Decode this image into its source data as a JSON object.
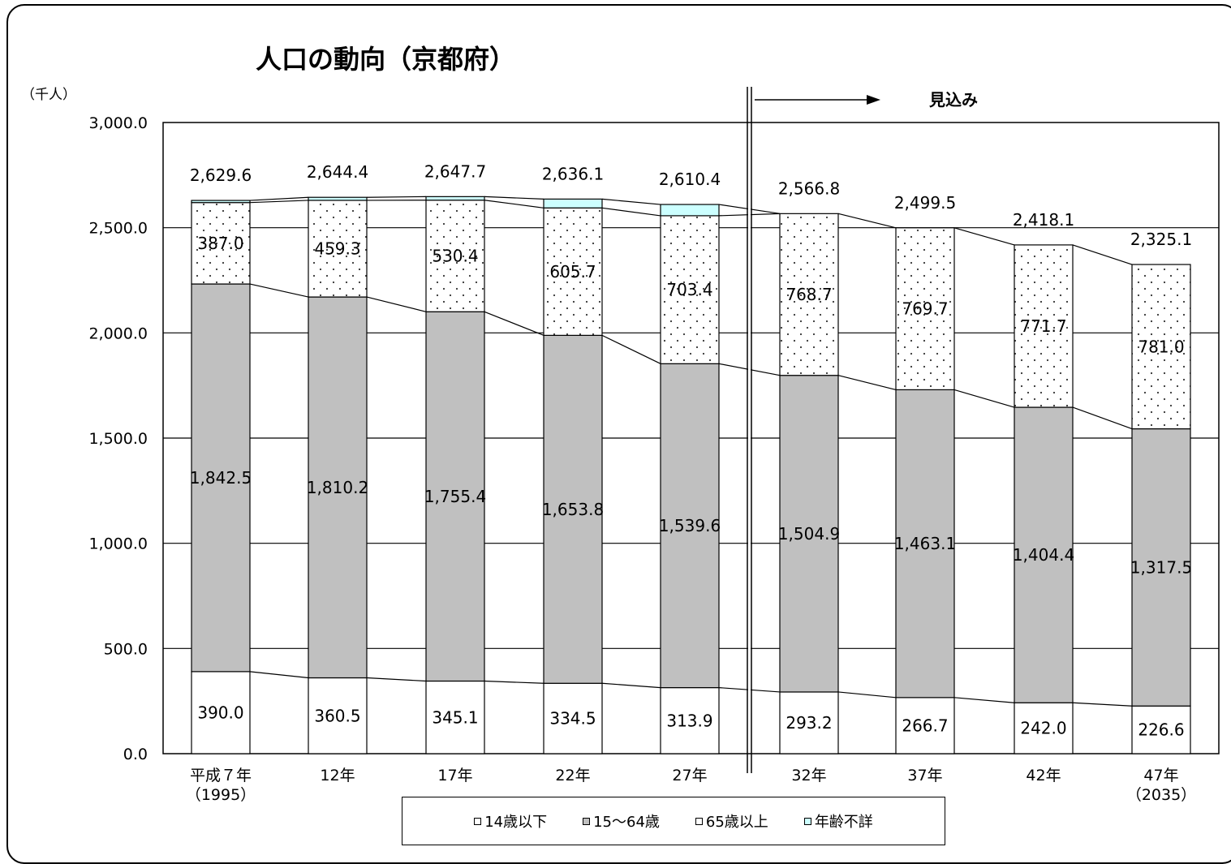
{
  "chart_data": {
    "type": "bar",
    "stacked": true,
    "title": "人口の動向（京都府）",
    "unit_label": "（千人）",
    "annotation": "見込み",
    "categories": [
      "平成７年\n（1995）",
      "12年",
      "17年",
      "22年",
      "27年",
      "32年",
      "37年",
      "42年",
      "47年\n（2035）"
    ],
    "series": [
      {
        "name": "14歳以下",
        "color": "#ffffff",
        "pattern": "none",
        "values": [
          390.0,
          360.5,
          345.1,
          334.5,
          313.9,
          293.2,
          266.7,
          242.0,
          226.6
        ],
        "labels": [
          "390.0",
          "360.5",
          "345.1",
          "334.5",
          "313.9",
          "293.2",
          "266.7",
          "242.0",
          "226.6"
        ]
      },
      {
        "name": "15～64歳",
        "color": "#c0c0c0",
        "pattern": "none",
        "values": [
          1842.5,
          1810.2,
          1755.4,
          1653.8,
          1539.6,
          1504.9,
          1463.1,
          1404.4,
          1317.5
        ],
        "labels": [
          "1,842.5",
          "1,810.2",
          "1,755.4",
          "1,653.8",
          "1,539.6",
          "1,504.9",
          "1,463.1",
          "1,404.4",
          "1,317.5"
        ]
      },
      {
        "name": "65歳以上",
        "color": "#ffffff",
        "pattern": "dots",
        "values": [
          387.0,
          459.3,
          530.4,
          605.7,
          703.4,
          768.7,
          769.7,
          771.7,
          781.0
        ],
        "labels": [
          "387.0",
          "459.3",
          "530.4",
          "605.7",
          "703.4",
          "768.7",
          "769.7",
          "771.7",
          "781.0"
        ]
      },
      {
        "name": "年齢不詳",
        "color": "#ccffff",
        "pattern": "none",
        "values": [
          10.1,
          14.4,
          16.8,
          42.1,
          53.5,
          0,
          0,
          0,
          0
        ],
        "labels": []
      }
    ],
    "totals": [
      2629.6,
      2644.4,
      2647.7,
      2636.1,
      2610.4,
      2566.8,
      2499.5,
      2418.1,
      2325.1
    ],
    "total_labels": [
      "2,629.6",
      "2,644.4",
      "2,647.7",
      "2,636.1",
      "2,610.4",
      "2,566.8",
      "2,499.5",
      "2,418.1",
      "2,325.1"
    ],
    "y_ticks": [
      0,
      500,
      1000,
      1500,
      2000,
      2500,
      3000
    ],
    "y_tick_labels": [
      "0.0",
      "500.0",
      "1,000.0",
      "1,500.0",
      "2,000.0",
      "2,500.0",
      "3,000.0"
    ],
    "ylim": [
      0,
      3000
    ],
    "grid": true,
    "legend_position": "bottom",
    "projection_divider_after_index": 4
  }
}
